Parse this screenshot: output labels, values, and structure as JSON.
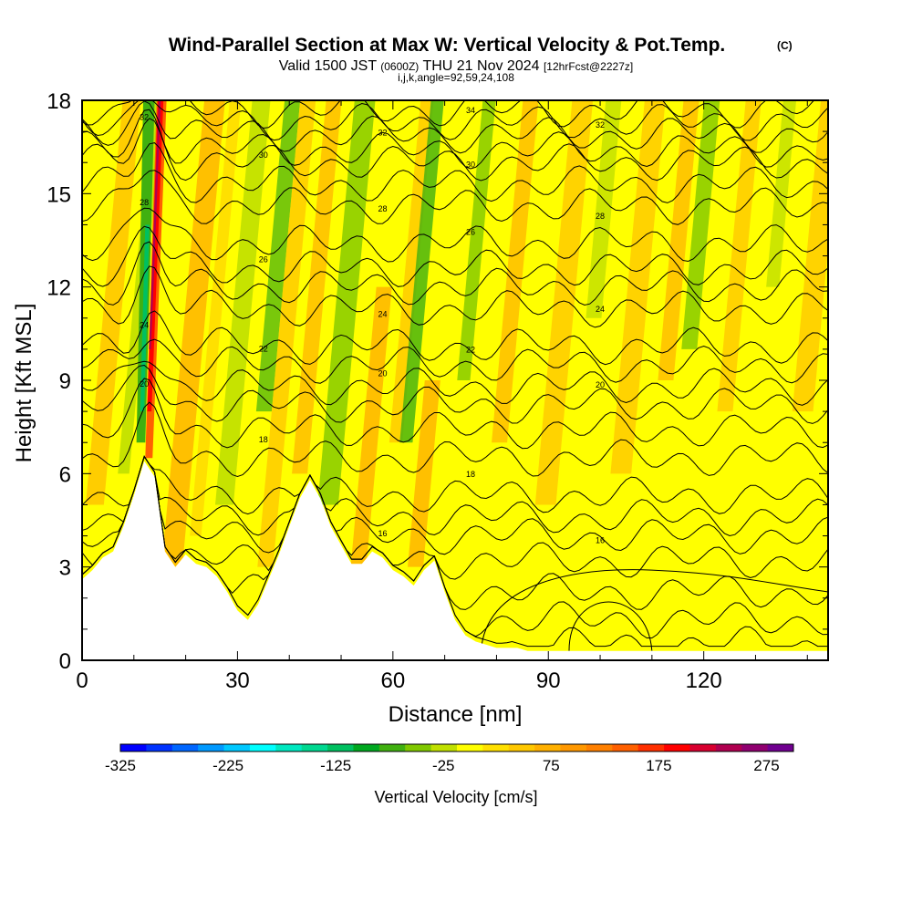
{
  "chart_data": {
    "type": "heatmap",
    "title": "Wind-Parallel Section at Max W: Vertical Velocity & Pot.Temp.",
    "title_tag": "(C)",
    "subtitle_parts": [
      "Valid 1500 JST ",
      "(0600Z)",
      " THU 21 Nov 2024 ",
      "[12hrFcst@2227z]"
    ],
    "subtitle2": "i,j,k,angle=92,59,24,108",
    "xlabel": "Distance [nm]",
    "ylabel": "Height [Kft MSL]",
    "xlim": [
      0,
      144
    ],
    "ylim": [
      0,
      18
    ],
    "xticks": [
      0,
      30,
      60,
      90,
      120
    ],
    "yticks": [
      0,
      3,
      6,
      9,
      12,
      15,
      18
    ],
    "colorbar": {
      "label": "Vertical Velocity [cm/s]",
      "range": [
        -325,
        300
      ],
      "tick_values": [
        -325,
        -225,
        -125,
        -25,
        75,
        175,
        275
      ],
      "colors": [
        "#0000ff",
        "#0033ff",
        "#0066ff",
        "#0099ff",
        "#00c8ff",
        "#00ffff",
        "#00e8c0",
        "#00d890",
        "#00c060",
        "#00a820",
        "#40b010",
        "#80c800",
        "#c0e000",
        "#ffff00",
        "#ffe000",
        "#ffc800",
        "#ffb000",
        "#ff9800",
        "#ff8000",
        "#ff6000",
        "#ff3000",
        "#ff0000",
        "#d80030",
        "#b00050",
        "#900070",
        "#700090"
      ]
    },
    "updraft_max_cms": 275,
    "updraft_core_distance_nm": 13,
    "downdraft_min_cms": -125,
    "downdraft_core_distance_nm": 11,
    "terrain": {
      "distance": [
        0,
        2,
        4,
        6,
        8,
        10,
        12,
        14,
        16,
        18,
        20,
        22,
        24,
        26,
        28,
        30,
        32,
        34,
        36,
        38,
        40,
        42,
        44,
        46,
        48,
        50,
        52,
        54,
        56,
        58,
        60,
        62,
        64,
        66,
        68,
        70,
        72,
        74,
        76,
        78,
        80,
        82,
        84,
        86,
        88,
        90,
        100,
        110,
        120,
        130,
        140,
        144
      ],
      "height": [
        2.6,
        2.9,
        3.3,
        3.5,
        4.3,
        5.3,
        6.4,
        5.9,
        3.5,
        3.0,
        3.4,
        3.1,
        3.0,
        2.7,
        2.2,
        1.6,
        1.3,
        1.8,
        2.6,
        3.4,
        4.3,
        5.2,
        5.8,
        5.2,
        4.3,
        3.7,
        3.1,
        3.1,
        3.5,
        3.3,
        2.9,
        2.7,
        2.4,
        2.9,
        3.2,
        2.2,
        1.3,
        0.8,
        0.6,
        0.5,
        0.4,
        0.4,
        0.4,
        0.3,
        0.3,
        0.3,
        0.3,
        0.3,
        0.3,
        0.3,
        0.3,
        0.3
      ]
    },
    "theta_contours": [
      {
        "label": "16",
        "level_kft": 4.0
      },
      {
        "label": "18",
        "level_kft": 6.5
      },
      {
        "label": "20",
        "level_kft": 8.8
      },
      {
        "label": "22",
        "level_kft": 10.1
      },
      {
        "label": "24",
        "level_kft": 11.3
      },
      {
        "label": "26",
        "level_kft": 13.4
      },
      {
        "label": "28",
        "level_kft": 14.6
      },
      {
        "label": "30",
        "level_kft": 16.0
      },
      {
        "label": "32",
        "level_kft": 16.9
      },
      {
        "label": "34",
        "level_kft": 17.7
      }
    ]
  }
}
